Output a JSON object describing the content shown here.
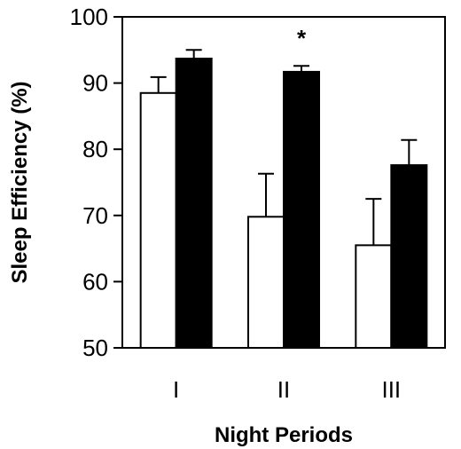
{
  "chart_data": {
    "type": "bar",
    "categories": [
      "I",
      "II",
      "III"
    ],
    "series": [
      {
        "color": "#ffffff",
        "values": [
          88.5,
          69.8,
          65.5
        ],
        "error": [
          2.4,
          6.5,
          7.0
        ]
      },
      {
        "color": "#000000",
        "values": [
          93.7,
          91.7,
          77.6
        ],
        "error": [
          1.3,
          0.9,
          3.8
        ]
      }
    ],
    "xlabel": "Night Periods",
    "ylabel": "Sleep Efficiency (%)",
    "ylim": [
      50,
      100
    ],
    "yticks": [
      "50",
      "60",
      "70",
      "80",
      "90",
      "100"
    ],
    "annotations": [
      {
        "category": "II",
        "text": "*"
      }
    ],
    "grid": false,
    "legend": "none"
  }
}
